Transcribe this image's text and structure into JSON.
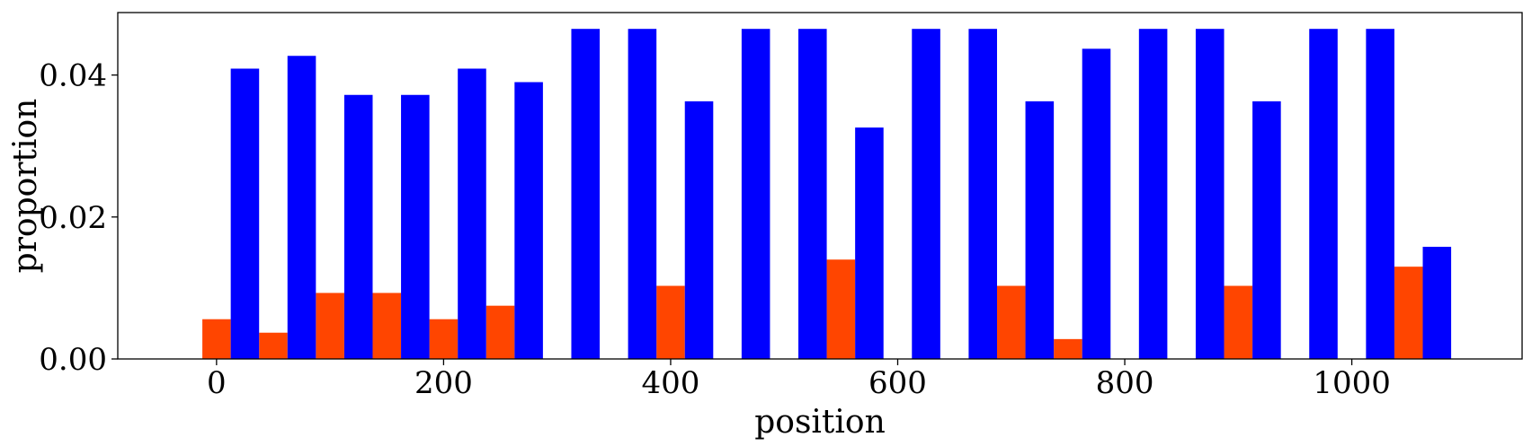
{
  "chart_data": {
    "type": "bar",
    "xlabel": "position",
    "ylabel": "proportion",
    "xlim": [
      -87,
      1150
    ],
    "ylim": [
      0,
      0.0488
    ],
    "xticks": [
      0,
      200,
      400,
      600,
      800,
      1000
    ],
    "xtick_labels": [
      "0",
      "200",
      "400",
      "600",
      "800",
      "1000"
    ],
    "yticks": [
      0,
      0.02,
      0.04
    ],
    "ytick_labels": [
      "0.00",
      "0.02",
      "0.04"
    ],
    "bar_width": 25,
    "grid": false,
    "series": [
      {
        "color": "#ff4500",
        "x": [
          0,
          50,
          100,
          150,
          200,
          250,
          300,
          400,
          500,
          550,
          650,
          700,
          750,
          850,
          900,
          1000,
          1050
        ],
        "values": [
          0.0056,
          0.0037,
          0.0093,
          0.0093,
          0.0056,
          0.0075,
          0.0,
          0.0103,
          0.0,
          0.014,
          0.0,
          0.0103,
          0.0028,
          0.0,
          0.0103,
          0.0,
          0.013
        ]
      },
      {
        "color": "#0000ff",
        "x": [
          25,
          75,
          125,
          175,
          225,
          275,
          325,
          375,
          425,
          475,
          525,
          575,
          625,
          675,
          725,
          775,
          825,
          875,
          925,
          975,
          1025,
          1075
        ],
        "values": [
          0.0409,
          0.0427,
          0.0372,
          0.0372,
          0.0409,
          0.039,
          0.0465,
          0.0465,
          0.0363,
          0.0465,
          0.0465,
          0.0326,
          0.0465,
          0.0465,
          0.0363,
          0.0437,
          0.0465,
          0.0465,
          0.0363,
          0.0465,
          0.0465,
          0.0158
        ]
      }
    ]
  }
}
